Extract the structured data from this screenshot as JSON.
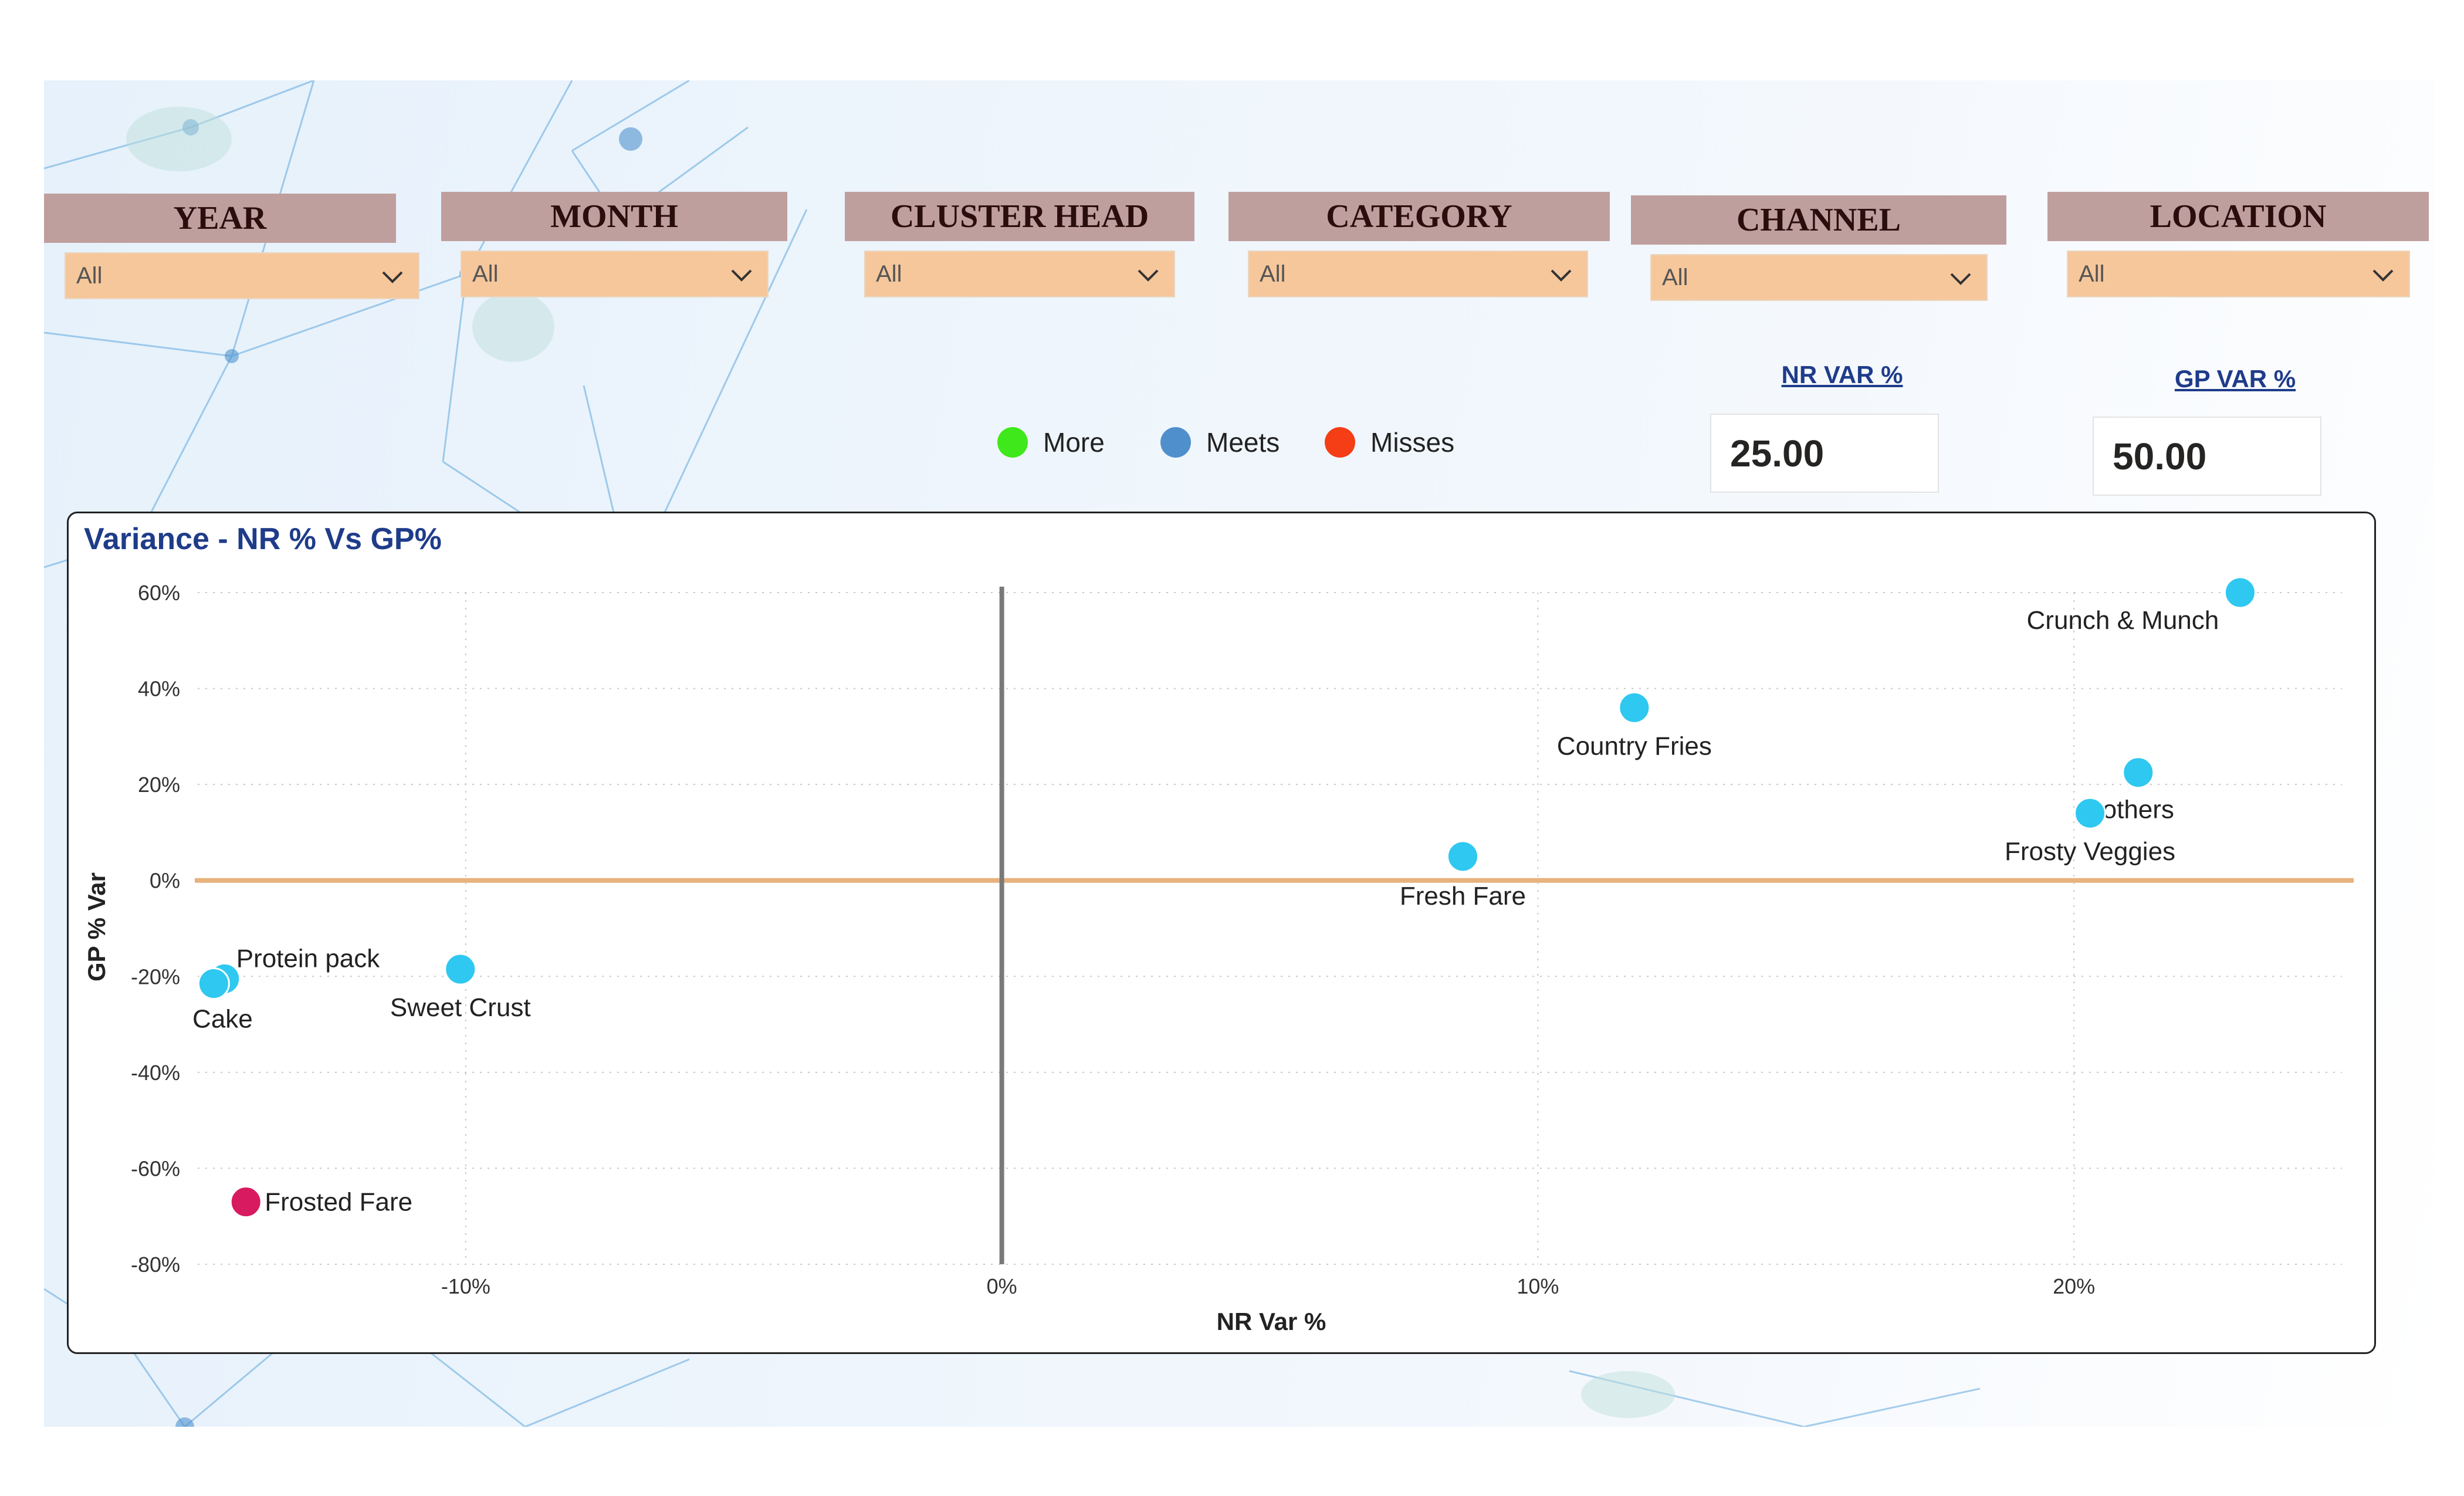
{
  "filters": [
    {
      "label": "YEAR",
      "value": "All"
    },
    {
      "label": "MONTH",
      "value": "All"
    },
    {
      "label": "CLUSTER HEAD",
      "value": "All"
    },
    {
      "label": "CATEGORY",
      "value": "All"
    },
    {
      "label": "CHANNEL",
      "value": "All"
    },
    {
      "label": "LOCATION",
      "value": "All"
    }
  ],
  "legend": [
    {
      "label": "More",
      "color": "#3ee81a"
    },
    {
      "label": "Meets",
      "color": "#4f8fcc"
    },
    {
      "label": "Misses",
      "color": "#f53d16"
    }
  ],
  "kpis": {
    "nr": {
      "title": "NR VAR %",
      "value": "25.00"
    },
    "gp": {
      "title": "GP VAR %",
      "value": "50.00"
    }
  },
  "chart_data": {
    "type": "scatter",
    "title": "Variance - NR % Vs GP%",
    "xlabel": "NR Var %",
    "ylabel": "GP % Var",
    "xlim": [
      -15,
      25
    ],
    "ylim": [
      -80,
      60
    ],
    "x_ticks": [
      -10,
      0,
      10,
      20
    ],
    "x_tick_labels": [
      "-10%",
      "0%",
      "10%",
      "20%"
    ],
    "y_ticks": [
      60,
      40,
      20,
      0,
      -20,
      -40,
      -60,
      -80
    ],
    "y_tick_labels": [
      "60%",
      "40%",
      "20%",
      "0%",
      "-20%",
      "-40%",
      "-60%",
      "-80%"
    ],
    "reference_lines": {
      "x": 0,
      "y": 0
    },
    "grid": true,
    "points": [
      {
        "name": "Crunch & Munch",
        "x": 23.1,
        "y": 60,
        "color": "#2ec8f0"
      },
      {
        "name": "Country Fries",
        "x": 11.8,
        "y": 36,
        "color": "#2ec8f0"
      },
      {
        "name": "others",
        "x": 21.2,
        "y": 22.5,
        "color": "#2ec8f0"
      },
      {
        "name": "Frosty Veggies",
        "x": 20.3,
        "y": 14,
        "color": "#2ec8f0"
      },
      {
        "name": "Fresh Fare",
        "x": 8.6,
        "y": 5,
        "color": "#2ec8f0"
      },
      {
        "name": "Protein pack",
        "x": -14.5,
        "y": -20.5,
        "color": "#2ec8f0"
      },
      {
        "name": "Cake",
        "x": -14.7,
        "y": -21.5,
        "color": "#2ec8f0"
      },
      {
        "name": "Sweet Crust",
        "x": -10.1,
        "y": -18.5,
        "color": "#2ec8f0"
      },
      {
        "name": "Frosted Fare",
        "x": -14.1,
        "y": -67,
        "color": "#d81b60"
      }
    ]
  }
}
